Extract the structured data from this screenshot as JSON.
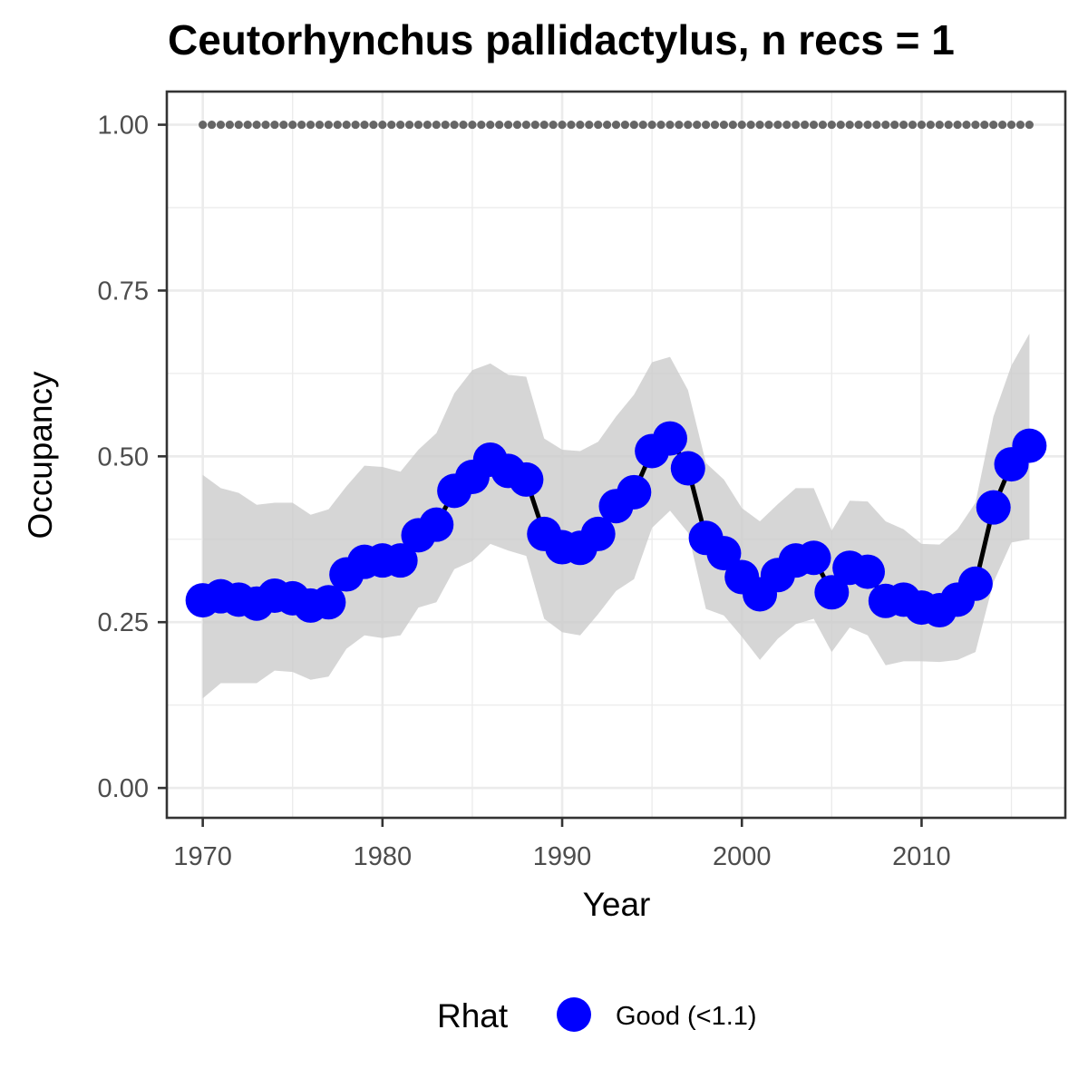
{
  "chart_data": {
    "type": "line",
    "title": "Ceutorhynchus pallidactylus, n recs = 1",
    "xlabel": "Year",
    "ylabel": "Occupancy",
    "xlim": [
      1968,
      2018
    ],
    "ylim": [
      -0.045,
      1.05
    ],
    "x_ticks": [
      1970,
      1980,
      1990,
      2000,
      2010
    ],
    "x_tick_labels": [
      "1970",
      "1980",
      "1990",
      "2000",
      "2010"
    ],
    "y_ticks": [
      0,
      0.25,
      0.5,
      0.75,
      1.0
    ],
    "y_tick_labels": [
      "0.00",
      "0.25",
      "0.50",
      "0.75",
      "1.00"
    ],
    "grid": true,
    "legend": {
      "title": "Rhat",
      "position": "bottom",
      "entries": [
        {
          "label": "Good (<1.1)",
          "color": "#0000ff"
        }
      ]
    },
    "colors": {
      "points": "#0000ff",
      "line": "#000000",
      "ribbon": "#cccccc",
      "dotted": "#666666",
      "grid": "#ebebeb",
      "border": "#333333"
    },
    "x": [
      1970,
      1971,
      1972,
      1973,
      1974,
      1975,
      1976,
      1977,
      1978,
      1979,
      1980,
      1981,
      1982,
      1983,
      1984,
      1985,
      1986,
      1987,
      1988,
      1989,
      1990,
      1991,
      1992,
      1993,
      1994,
      1995,
      1996,
      1997,
      1998,
      1999,
      2000,
      2001,
      2002,
      2003,
      2004,
      2005,
      2006,
      2007,
      2008,
      2009,
      2010,
      2011,
      2012,
      2013,
      2014,
      2015,
      2016
    ],
    "series": [
      {
        "name": "Good (<1.1)",
        "values": [
          0.283,
          0.289,
          0.284,
          0.278,
          0.29,
          0.286,
          0.275,
          0.28,
          0.322,
          0.341,
          0.343,
          0.343,
          0.381,
          0.397,
          0.448,
          0.469,
          0.495,
          0.478,
          0.465,
          0.383,
          0.363,
          0.362,
          0.383,
          0.425,
          0.446,
          0.508,
          0.527,
          0.482,
          0.377,
          0.354,
          0.318,
          0.292,
          0.321,
          0.343,
          0.347,
          0.295,
          0.332,
          0.326,
          0.282,
          0.284,
          0.272,
          0.268,
          0.284,
          0.308,
          0.423,
          0.488,
          0.516
        ],
        "lower": [
          0.135,
          0.158,
          0.158,
          0.158,
          0.177,
          0.175,
          0.163,
          0.168,
          0.21,
          0.23,
          0.226,
          0.23,
          0.272,
          0.28,
          0.33,
          0.342,
          0.368,
          0.358,
          0.35,
          0.255,
          0.235,
          0.23,
          0.262,
          0.297,
          0.315,
          0.392,
          0.418,
          0.385,
          0.27,
          0.26,
          0.228,
          0.193,
          0.225,
          0.247,
          0.255,
          0.205,
          0.242,
          0.23,
          0.185,
          0.191,
          0.191,
          0.19,
          0.193,
          0.205,
          0.31,
          0.37,
          0.375
        ],
        "upper": [
          0.472,
          0.452,
          0.445,
          0.427,
          0.43,
          0.43,
          0.412,
          0.42,
          0.455,
          0.486,
          0.484,
          0.477,
          0.51,
          0.535,
          0.595,
          0.63,
          0.64,
          0.623,
          0.62,
          0.527,
          0.51,
          0.508,
          0.522,
          0.56,
          0.593,
          0.642,
          0.65,
          0.6,
          0.49,
          0.465,
          0.422,
          0.402,
          0.428,
          0.452,
          0.452,
          0.388,
          0.433,
          0.432,
          0.402,
          0.39,
          0.368,
          0.367,
          0.39,
          0.43,
          0.56,
          0.637,
          0.685
        ]
      }
    ],
    "reference_line": {
      "y": 1.0,
      "style": "dotted"
    }
  }
}
